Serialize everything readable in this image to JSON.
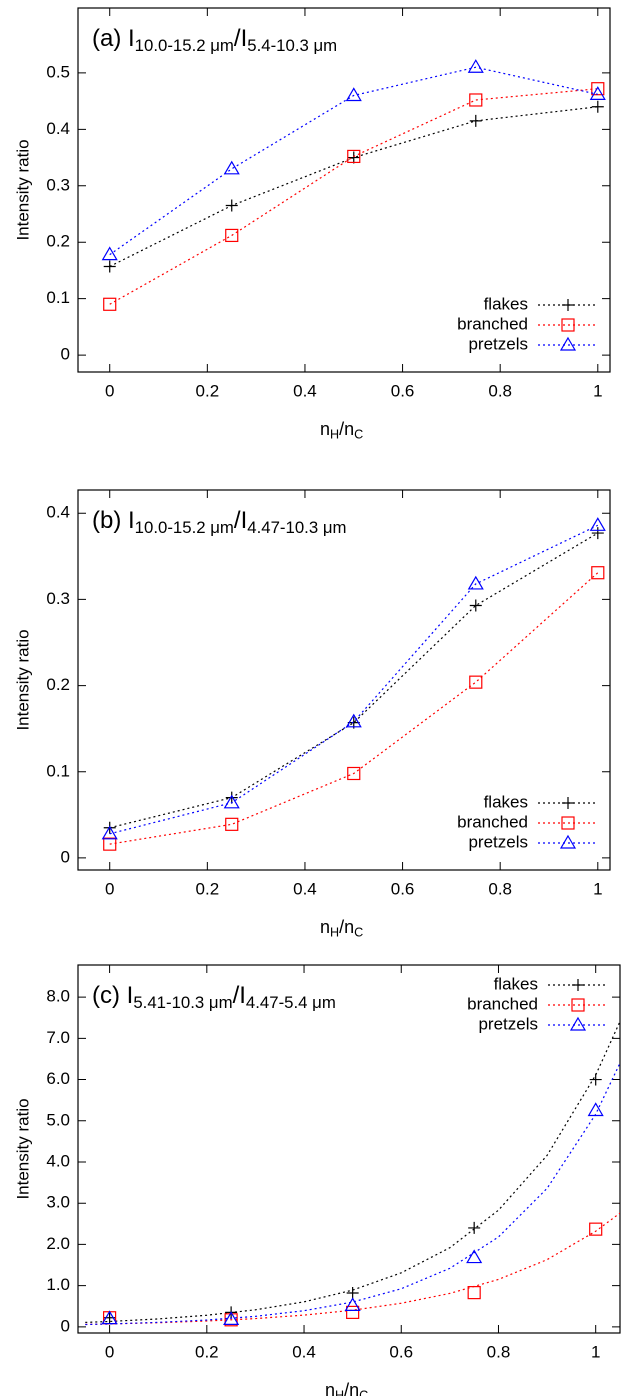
{
  "chart_data": [
    {
      "type": "line",
      "title_parts": [
        "(a) I",
        "10.0-15.2 μm",
        "/I",
        "5.4-10.3 μm"
      ],
      "xlabel_parts": [
        "n",
        "H",
        "/n",
        "C"
      ],
      "ylabel": "Intensity ratio",
      "x": [
        0,
        0.25,
        0.5,
        0.75,
        1
      ],
      "series": [
        {
          "name": "flakes",
          "color": "#000000",
          "marker": "plus",
          "values": [
            0.157,
            0.265,
            0.35,
            0.415,
            0.44
          ]
        },
        {
          "name": "branched",
          "color": "#ff0000",
          "marker": "square",
          "values": [
            0.09,
            0.212,
            0.352,
            0.452,
            0.472
          ]
        },
        {
          "name": "pretzels",
          "color": "#0000ff",
          "marker": "triangle",
          "values": [
            0.178,
            0.33,
            0.46,
            0.51,
            0.462
          ]
        }
      ],
      "xlim": [
        -0.065,
        1.025
      ],
      "ylim": [
        -0.03,
        0.615
      ],
      "xticks": [
        0,
        0.2,
        0.4,
        0.6,
        0.8,
        1
      ],
      "yticks": [
        0,
        0.1,
        0.2,
        0.3,
        0.4,
        0.5
      ],
      "legend": "bottom right"
    },
    {
      "type": "line",
      "title_parts": [
        "(b) I",
        "10.0-15.2 μm",
        "/I",
        "4.47-10.3 μm"
      ],
      "xlabel_parts": [
        "n",
        "H",
        "/n",
        "C"
      ],
      "ylabel": "Intensity ratio",
      "x": [
        0,
        0.25,
        0.5,
        0.75,
        1
      ],
      "series": [
        {
          "name": "flakes",
          "color": "#000000",
          "marker": "plus",
          "values": [
            0.035,
            0.07,
            0.157,
            0.293,
            0.377
          ]
        },
        {
          "name": "branched",
          "color": "#ff0000",
          "marker": "square",
          "values": [
            0.016,
            0.039,
            0.098,
            0.204,
            0.331
          ]
        },
        {
          "name": "pretzels",
          "color": "#0000ff",
          "marker": "triangle",
          "values": [
            0.028,
            0.064,
            0.158,
            0.318,
            0.386
          ]
        }
      ],
      "xlim": [
        -0.065,
        1.025
      ],
      "ylim": [
        -0.014,
        0.427
      ],
      "xticks": [
        0,
        0.2,
        0.4,
        0.6,
        0.8,
        1
      ],
      "yticks": [
        0,
        0.1,
        0.2,
        0.3,
        0.4
      ],
      "legend": "bottom right"
    },
    {
      "type": "line",
      "title_parts": [
        "(c) I",
        "5.41-10.3 μm",
        "/I",
        "4.47-5.4 μm"
      ],
      "xlabel_parts": [
        "n",
        "H",
        "/n",
        "C"
      ],
      "ylabel": "Intensity ratio",
      "x": [
        0,
        0.25,
        0.5,
        0.75,
        1
      ],
      "curve_x": [
        -0.05,
        0,
        0.1,
        0.2,
        0.3,
        0.4,
        0.5,
        0.6,
        0.7,
        0.8,
        0.9,
        1.0,
        1.05
      ],
      "series": [
        {
          "name": "flakes",
          "color": "#000000",
          "marker": "plus",
          "values": [
            0.22,
            0.35,
            0.82,
            2.4,
            6.0
          ],
          "curve_values": [
            0.107,
            0.13,
            0.191,
            0.281,
            0.413,
            0.606,
            0.891,
            1.31,
            1.92,
            2.83,
            4.16,
            6.11,
            7.41
          ]
        },
        {
          "name": "branched",
          "color": "#ff0000",
          "marker": "square",
          "values": [
            0.22,
            0.17,
            0.35,
            0.83,
            2.37
          ],
          "curve_values": [
            0.059,
            0.07,
            0.099,
            0.141,
            0.2,
            0.284,
            0.403,
            0.572,
            0.811,
            1.15,
            1.63,
            2.32,
            2.76
          ]
        },
        {
          "name": "pretzels",
          "color": "#0000ff",
          "marker": "triangle",
          "values": [
            0.2,
            0.18,
            0.52,
            1.68,
            5.25
          ],
          "curve_values": [
            0.056,
            0.07,
            0.108,
            0.165,
            0.254,
            0.391,
            0.601,
            0.924,
            1.42,
            2.18,
            3.36,
            5.16,
            6.4
          ]
        }
      ],
      "xlim": [
        -0.065,
        1.05
      ],
      "ylim": [
        -0.15,
        8.78
      ],
      "xticks": [
        0,
        0.2,
        0.4,
        0.6,
        0.8,
        1
      ],
      "yticks": [
        0,
        {
          "value": 1,
          "label": "1.0"
        },
        {
          "value": 2,
          "label": "2.0"
        },
        {
          "value": 3,
          "label": "3.0"
        },
        {
          "value": 4,
          "label": "4.0"
        },
        {
          "value": 5,
          "label": "5.0"
        },
        {
          "value": 6,
          "label": "6.0"
        },
        {
          "value": 7,
          "label": "7.0"
        },
        {
          "value": 8,
          "label": "8.0"
        }
      ],
      "legend": "top right"
    }
  ]
}
